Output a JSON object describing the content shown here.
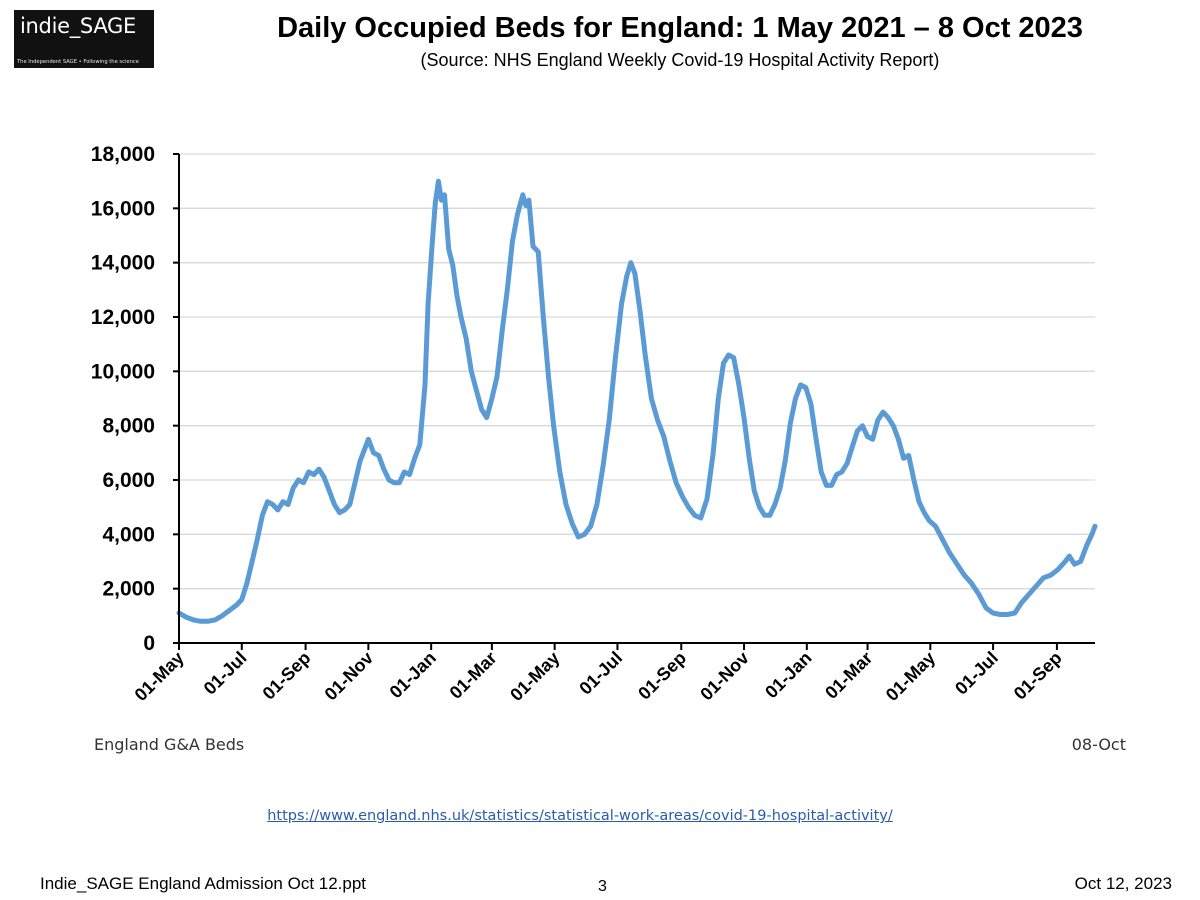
{
  "logo": {
    "name": "indie_SAGE",
    "tagline": "The Independent SAGE • Following the science"
  },
  "header": {
    "title": "Daily Occupied Beds for England: 1 May 2021 – 8 Oct 2023",
    "subtitle": "(Source: NHS England Weekly Covid-19 Hospital Activity Report)"
  },
  "chart_data": {
    "type": "line",
    "title": "Daily Occupied Beds for England: 1 May 2021 – 8 Oct 2023",
    "xlabel": "",
    "ylabel": "",
    "ylim": [
      0,
      18000
    ],
    "yticks": [
      0,
      2000,
      4000,
      6000,
      8000,
      10000,
      12000,
      14000,
      16000,
      18000
    ],
    "ytick_labels": [
      "0",
      "2,000",
      "4,000",
      "6,000",
      "8,000",
      "10,000",
      "12,000",
      "14,000",
      "16,000",
      "18,000"
    ],
    "x_start": "2021-05-01",
    "x_end": "2023-10-08",
    "xticks": [
      {
        "date": "2021-05-01",
        "label": "01-May"
      },
      {
        "date": "2021-07-01",
        "label": "01-Jul"
      },
      {
        "date": "2021-09-01",
        "label": "01-Sep"
      },
      {
        "date": "2021-11-01",
        "label": "01-Nov"
      },
      {
        "date": "2022-01-01",
        "label": "01-Jan"
      },
      {
        "date": "2022-03-01",
        "label": "01-Mar"
      },
      {
        "date": "2022-05-01",
        "label": "01-May"
      },
      {
        "date": "2022-07-01",
        "label": "01-Jul"
      },
      {
        "date": "2022-09-01",
        "label": "01-Sep"
      },
      {
        "date": "2022-11-01",
        "label": "01-Nov"
      },
      {
        "date": "2023-01-01",
        "label": "01-Jan"
      },
      {
        "date": "2023-03-01",
        "label": "01-Mar"
      },
      {
        "date": "2023-05-01",
        "label": "01-May"
      },
      {
        "date": "2023-07-01",
        "label": "01-Jul"
      },
      {
        "date": "2023-09-01",
        "label": "01-Sep"
      }
    ],
    "grid": true,
    "series": [
      {
        "name": "England G&A Beds",
        "color": "#5b9bd5",
        "points": [
          [
            "2021-05-01",
            1100
          ],
          [
            "2021-05-08",
            950
          ],
          [
            "2021-05-15",
            850
          ],
          [
            "2021-05-22",
            800
          ],
          [
            "2021-05-29",
            800
          ],
          [
            "2021-06-05",
            850
          ],
          [
            "2021-06-12",
            1000
          ],
          [
            "2021-06-19",
            1200
          ],
          [
            "2021-06-26",
            1400
          ],
          [
            "2021-07-01",
            1600
          ],
          [
            "2021-07-06",
            2200
          ],
          [
            "2021-07-11",
            3000
          ],
          [
            "2021-07-16",
            3800
          ],
          [
            "2021-07-21",
            4700
          ],
          [
            "2021-07-26",
            5200
          ],
          [
            "2021-07-31",
            5100
          ],
          [
            "2021-08-05",
            4900
          ],
          [
            "2021-08-10",
            5200
          ],
          [
            "2021-08-15",
            5100
          ],
          [
            "2021-08-20",
            5700
          ],
          [
            "2021-08-25",
            6000
          ],
          [
            "2021-08-30",
            5900
          ],
          [
            "2021-09-04",
            6300
          ],
          [
            "2021-09-09",
            6200
          ],
          [
            "2021-09-14",
            6400
          ],
          [
            "2021-09-19",
            6100
          ],
          [
            "2021-09-24",
            5600
          ],
          [
            "2021-09-29",
            5100
          ],
          [
            "2021-10-04",
            4800
          ],
          [
            "2021-10-09",
            4900
          ],
          [
            "2021-10-14",
            5100
          ],
          [
            "2021-10-19",
            5900
          ],
          [
            "2021-10-24",
            6700
          ],
          [
            "2021-10-29",
            7200
          ],
          [
            "2021-11-01",
            7500
          ],
          [
            "2021-11-06",
            7000
          ],
          [
            "2021-11-11",
            6900
          ],
          [
            "2021-11-16",
            6400
          ],
          [
            "2021-11-21",
            6000
          ],
          [
            "2021-11-26",
            5900
          ],
          [
            "2021-12-01",
            5900
          ],
          [
            "2021-12-06",
            6300
          ],
          [
            "2021-12-11",
            6200
          ],
          [
            "2021-12-16",
            6800
          ],
          [
            "2021-12-21",
            7300
          ],
          [
            "2021-12-26",
            9500
          ],
          [
            "2021-12-29",
            12500
          ],
          [
            "2022-01-02",
            14700
          ],
          [
            "2022-01-05",
            16200
          ],
          [
            "2022-01-08",
            17000
          ],
          [
            "2022-01-11",
            16300
          ],
          [
            "2022-01-14",
            16500
          ],
          [
            "2022-01-18",
            14500
          ],
          [
            "2022-01-22",
            13900
          ],
          [
            "2022-01-26",
            12800
          ],
          [
            "2022-01-30",
            12000
          ],
          [
            "2022-02-04",
            11200
          ],
          [
            "2022-02-09",
            10000
          ],
          [
            "2022-02-14",
            9300
          ],
          [
            "2022-02-19",
            8600
          ],
          [
            "2022-02-24",
            8300
          ],
          [
            "2022-03-01",
            9000
          ],
          [
            "2022-03-06",
            9800
          ],
          [
            "2022-03-11",
            11500
          ],
          [
            "2022-03-16",
            13000
          ],
          [
            "2022-03-21",
            14800
          ],
          [
            "2022-03-26",
            15800
          ],
          [
            "2022-03-31",
            16500
          ],
          [
            "2022-04-03",
            16100
          ],
          [
            "2022-04-06",
            16300
          ],
          [
            "2022-04-10",
            14600
          ],
          [
            "2022-04-15",
            14400
          ],
          [
            "2022-04-20",
            12000
          ],
          [
            "2022-04-25",
            9800
          ],
          [
            "2022-04-30",
            8000
          ],
          [
            "2022-05-06",
            6300
          ],
          [
            "2022-05-12",
            5100
          ],
          [
            "2022-05-18",
            4400
          ],
          [
            "2022-05-24",
            3900
          ],
          [
            "2022-05-30",
            4000
          ],
          [
            "2022-06-05",
            4300
          ],
          [
            "2022-06-11",
            5100
          ],
          [
            "2022-06-17",
            6500
          ],
          [
            "2022-06-23",
            8200
          ],
          [
            "2022-06-29",
            10500
          ],
          [
            "2022-07-05",
            12500
          ],
          [
            "2022-07-10",
            13500
          ],
          [
            "2022-07-14",
            14000
          ],
          [
            "2022-07-18",
            13600
          ],
          [
            "2022-07-23",
            12200
          ],
          [
            "2022-07-28",
            10600
          ],
          [
            "2022-08-03",
            9000
          ],
          [
            "2022-08-09",
            8200
          ],
          [
            "2022-08-15",
            7600
          ],
          [
            "2022-08-21",
            6700
          ],
          [
            "2022-08-27",
            5900
          ],
          [
            "2022-09-02",
            5400
          ],
          [
            "2022-09-08",
            5000
          ],
          [
            "2022-09-14",
            4700
          ],
          [
            "2022-09-20",
            4600
          ],
          [
            "2022-09-26",
            5300
          ],
          [
            "2022-10-02",
            7000
          ],
          [
            "2022-10-07",
            9000
          ],
          [
            "2022-10-12",
            10300
          ],
          [
            "2022-10-17",
            10600
          ],
          [
            "2022-10-22",
            10500
          ],
          [
            "2022-10-27",
            9500
          ],
          [
            "2022-11-01",
            8300
          ],
          [
            "2022-11-06",
            6800
          ],
          [
            "2022-11-11",
            5600
          ],
          [
            "2022-11-16",
            5000
          ],
          [
            "2022-11-21",
            4700
          ],
          [
            "2022-11-26",
            4700
          ],
          [
            "2022-12-01",
            5100
          ],
          [
            "2022-12-06",
            5700
          ],
          [
            "2022-12-11",
            6700
          ],
          [
            "2022-12-16",
            8100
          ],
          [
            "2022-12-21",
            9000
          ],
          [
            "2022-12-26",
            9500
          ],
          [
            "2022-12-31",
            9400
          ],
          [
            "2023-01-05",
            8800
          ],
          [
            "2023-01-10",
            7500
          ],
          [
            "2023-01-15",
            6300
          ],
          [
            "2023-01-20",
            5800
          ],
          [
            "2023-01-25",
            5800
          ],
          [
            "2023-01-30",
            6200
          ],
          [
            "2023-02-04",
            6300
          ],
          [
            "2023-02-09",
            6600
          ],
          [
            "2023-02-14",
            7200
          ],
          [
            "2023-02-19",
            7800
          ],
          [
            "2023-02-24",
            8000
          ],
          [
            "2023-03-01",
            7600
          ],
          [
            "2023-03-06",
            7500
          ],
          [
            "2023-03-11",
            8200
          ],
          [
            "2023-03-16",
            8500
          ],
          [
            "2023-03-21",
            8300
          ],
          [
            "2023-03-26",
            8000
          ],
          [
            "2023-03-31",
            7500
          ],
          [
            "2023-04-05",
            6800
          ],
          [
            "2023-04-10",
            6900
          ],
          [
            "2023-04-15",
            6000
          ],
          [
            "2023-04-20",
            5200
          ],
          [
            "2023-04-25",
            4800
          ],
          [
            "2023-04-30",
            4500
          ],
          [
            "2023-05-06",
            4300
          ],
          [
            "2023-05-13",
            3800
          ],
          [
            "2023-05-20",
            3300
          ],
          [
            "2023-05-27",
            2900
          ],
          [
            "2023-06-03",
            2500
          ],
          [
            "2023-06-10",
            2200
          ],
          [
            "2023-06-17",
            1800
          ],
          [
            "2023-06-24",
            1300
          ],
          [
            "2023-07-01",
            1100
          ],
          [
            "2023-07-08",
            1050
          ],
          [
            "2023-07-15",
            1050
          ],
          [
            "2023-07-22",
            1100
          ],
          [
            "2023-07-29",
            1500
          ],
          [
            "2023-08-05",
            1800
          ],
          [
            "2023-08-12",
            2100
          ],
          [
            "2023-08-19",
            2400
          ],
          [
            "2023-08-26",
            2500
          ],
          [
            "2023-09-02",
            2700
          ],
          [
            "2023-09-09",
            3000
          ],
          [
            "2023-09-13",
            3200
          ],
          [
            "2023-09-18",
            2900
          ],
          [
            "2023-09-24",
            3000
          ],
          [
            "2023-09-30",
            3600
          ],
          [
            "2023-10-05",
            4000
          ],
          [
            "2023-10-08",
            4300
          ]
        ]
      }
    ],
    "annotations": {
      "left_label": "England G&A Beds",
      "right_label": "08-Oct"
    }
  },
  "source_link": "https://www.england.nhs.uk/statistics/statistical-work-areas/covid-19-hospital-activity/",
  "footer": {
    "file": "Indie_SAGE England Admission Oct 12.ppt",
    "page": "3",
    "date": "Oct 12, 2023"
  }
}
